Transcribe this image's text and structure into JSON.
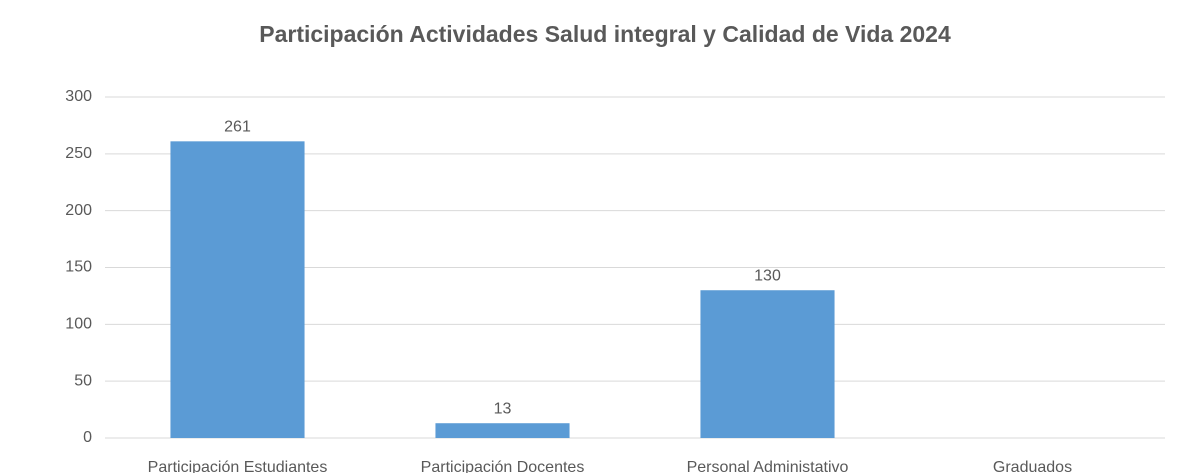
{
  "chart_data": {
    "type": "bar",
    "title": "Participación Actividades Salud integral y Calidad de Vida 2024",
    "categories": [
      "Participación Estudiantes",
      "Participación Docentes",
      "Personal Administativo",
      "Graduados"
    ],
    "values": [
      261,
      13,
      130,
      null
    ],
    "color": "#5b9bd5",
    "ylim": [
      0,
      300
    ],
    "yticks": [
      0,
      50,
      100,
      150,
      200,
      250,
      300
    ],
    "grid": true
  }
}
